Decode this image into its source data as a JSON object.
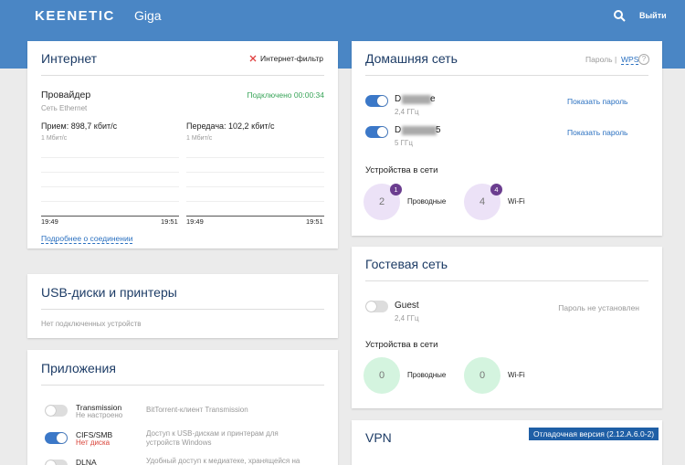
{
  "header": {
    "logo": "KEENETIC",
    "model": "Giga",
    "logout": "Выйти"
  },
  "internet": {
    "title": "Интернет",
    "filter": "Интернет-фильтр",
    "provider": "Провайдер",
    "provider_type": "Сеть Ethernet",
    "status": "Подключено 00:00:34",
    "rx": "Прием: 898,7 кбит/с",
    "tx": "Передача: 102,2 кбит/с",
    "rx_scale": "1 Мбит/с",
    "tx_scale": "1 Мбит/с",
    "rx_times": [
      "19:49",
      "19:51"
    ],
    "tx_times": [
      "19:49",
      "19:51"
    ],
    "details_link": "Подробнее о соединении"
  },
  "usb": {
    "title": "USB-диски и принтеры",
    "empty": "Нет подключенных устройств"
  },
  "apps": {
    "title": "Приложения",
    "items": [
      {
        "name": "Transmission",
        "status": "Не настроено",
        "description": "BitTorrent-клиент Transmission",
        "enabled": false
      },
      {
        "name": "CIFS/SMB",
        "status": "Нет диска",
        "description": "Доступ к USB-дискам и принтерам для устройств Windows",
        "enabled": true
      },
      {
        "name": "DLNA",
        "description": "Удобный доступ к медиатеке, хранящейся на",
        "enabled": false
      }
    ]
  },
  "home": {
    "title": "Домашняя сеть",
    "password_link": "Пароль",
    "wps_link": "WPS",
    "help": "?",
    "networks": [
      {
        "name_start": "D",
        "name_end": "e",
        "band": "2,4 ГГц",
        "show_password": "Показать пароль",
        "enabled": true
      },
      {
        "name_start": "D",
        "name_end": "5",
        "band": "5 ГГц",
        "show_password": "Показать пароль",
        "enabled": true
      }
    ],
    "devices_title": "Устройства в сети",
    "devices": [
      {
        "count": 2,
        "new": 1,
        "label": "Проводные"
      },
      {
        "count": 4,
        "new": 4,
        "label": "Wi-Fi"
      }
    ]
  },
  "guest": {
    "title": "Гостевая сеть",
    "network": {
      "name": "Guest",
      "band": "2,4 ГГц",
      "password_status": "Пароль не установлен",
      "enabled": false
    },
    "devices_title": "Устройства в сети",
    "devices": [
      {
        "count": 0,
        "label": "Проводные"
      },
      {
        "count": 0,
        "label": "Wi-Fi"
      }
    ]
  },
  "vpn": {
    "title": "VPN",
    "badge": "Отладочная версия (2.12.A.6.0-2)"
  }
}
